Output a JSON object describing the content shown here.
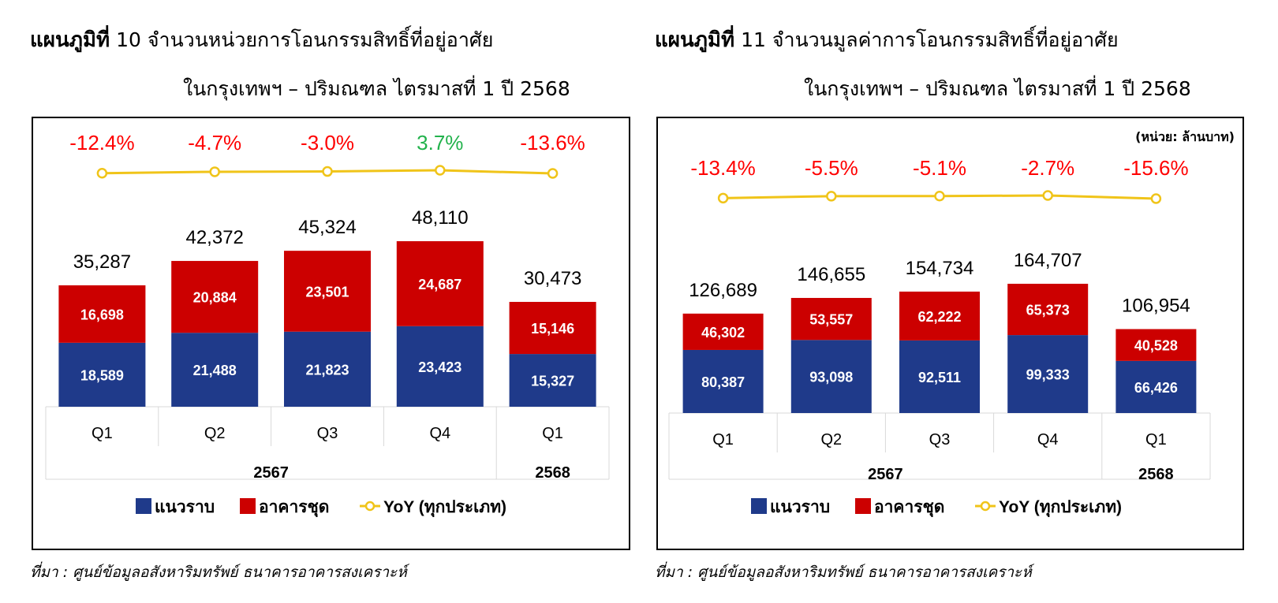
{
  "colors": {
    "landed": "#1f3a8a",
    "condo": "#cc0000",
    "yoy_line": "#f0c419",
    "negative": "#ff0000",
    "positive": "#22b24c",
    "grid": "#d9d9d9"
  },
  "legend": {
    "landed": "แนวราบ",
    "condo": "อาคารชุด",
    "yoy": "YoY (ทุกประเภท)"
  },
  "charts": [
    {
      "title_prefix": "แผนภูมิที่",
      "title_number_text": "10 จำนวนหน่วยการโอนกรรมสิทธิ์ที่อยู่อาศัย",
      "title_line2": "ในกรุงเทพฯ – ปริมณฑล ไตรมาสที่ 1 ปี 2568",
      "unit_note": "",
      "source": "ที่มา : ศูนย์ข้อมูลอสังหาริมทรัพย์ ธนาคารอาคารสงเคราะห์",
      "chart_data": {
        "type": "bar",
        "stacked": true,
        "categories": [
          "Q1",
          "Q2",
          "Q3",
          "Q4",
          "Q1"
        ],
        "groups": [
          {
            "label": "2567",
            "span": 4
          },
          {
            "label": "2568",
            "span": 1
          }
        ],
        "series": [
          {
            "name": "แนวราบ",
            "values": [
              18589,
              21488,
              21823,
              23423,
              15327
            ],
            "labels": [
              "18,589",
              "21,488",
              "21,823",
              "23,423",
              "15,327"
            ]
          },
          {
            "name": "อาคารชุด",
            "values": [
              16698,
              20884,
              23501,
              24687,
              15146
            ],
            "labels": [
              "16,698",
              "20,884",
              "23,501",
              "24,687",
              "15,146"
            ]
          }
        ],
        "totals": [
          35287,
          42372,
          45324,
          48110,
          30473
        ],
        "total_labels": [
          "35,287",
          "42,372",
          "45,324",
          "48,110",
          "30,473"
        ],
        "yoy": {
          "name": "YoY (ทุกประเภท)",
          "values": [
            -12.4,
            -4.7,
            -3.0,
            3.7,
            -13.6
          ],
          "labels": [
            "-12.4%",
            "-4.7%",
            "-3.0%",
            "3.7%",
            "-13.6%"
          ]
        },
        "ylim": [
          0,
          48110
        ]
      }
    },
    {
      "title_prefix": "แผนภูมิที่",
      "title_number_text": "11 จำนวนมูลค่าการโอนกรรมสิทธิ์ที่อยู่อาศัย",
      "title_line2": "ในกรุงเทพฯ – ปริมณฑล ไตรมาสที่ 1 ปี 2568",
      "unit_note": "(หน่วย: ล้านบาท)",
      "source": "ที่มา : ศูนย์ข้อมูลอสังหาริมทรัพย์ ธนาคารอาคารสงเคราะห์",
      "chart_data": {
        "type": "bar",
        "stacked": true,
        "categories": [
          "Q1",
          "Q2",
          "Q3",
          "Q4",
          "Q1"
        ],
        "groups": [
          {
            "label": "2567",
            "span": 4
          },
          {
            "label": "2568",
            "span": 1
          }
        ],
        "series": [
          {
            "name": "แนวราบ",
            "values": [
              80387,
              93098,
              92511,
              99333,
              66426
            ],
            "labels": [
              "80,387",
              "93,098",
              "92,511",
              "99,333",
              "66,426"
            ]
          },
          {
            "name": "อาคารชุด",
            "values": [
              46302,
              53557,
              62222,
              65373,
              40528
            ],
            "labels": [
              "46,302",
              "53,557",
              "62,222",
              "65,373",
              "40,528"
            ]
          }
        ],
        "totals": [
          126689,
          146655,
          154734,
          164707,
          106954
        ],
        "total_labels": [
          "126,689",
          "146,655",
          "154,734",
          "164,707",
          "106,954"
        ],
        "yoy": {
          "name": "YoY (ทุกประเภท)",
          "values": [
            -13.4,
            -5.5,
            -5.1,
            -2.7,
            -15.6
          ],
          "labels": [
            "-13.4%",
            "-5.5%",
            "-5.1%",
            "-2.7%",
            "-15.6%"
          ]
        },
        "ylim": [
          0,
          164707
        ]
      }
    }
  ]
}
